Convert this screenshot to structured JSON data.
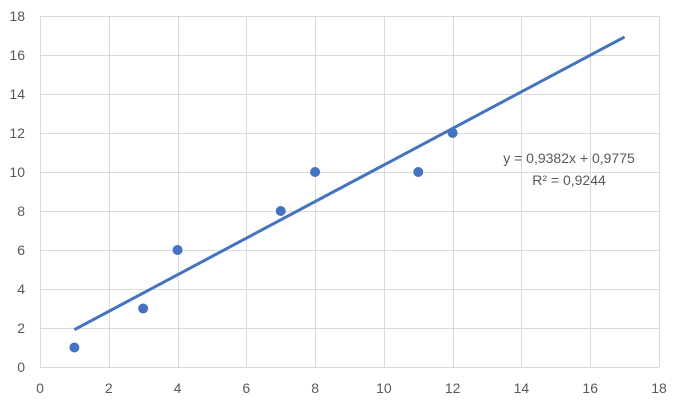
{
  "chart_data": {
    "type": "scatter",
    "title": "",
    "xlabel": "",
    "ylabel": "",
    "xlim": [
      0,
      18
    ],
    "ylim": [
      0,
      18
    ],
    "x_ticks": [
      0,
      2,
      4,
      6,
      8,
      10,
      12,
      14,
      16,
      18
    ],
    "y_ticks": [
      0,
      2,
      4,
      6,
      8,
      10,
      12,
      14,
      16,
      18
    ],
    "grid": true,
    "legend": "none",
    "series": [
      {
        "points": [
          {
            "x": 1,
            "y": 1
          },
          {
            "x": 3,
            "y": 3
          },
          {
            "x": 4,
            "y": 6
          },
          {
            "x": 7,
            "y": 8
          },
          {
            "x": 8,
            "y": 10
          },
          {
            "x": 11,
            "y": 10
          },
          {
            "x": 12,
            "y": 12
          }
        ],
        "color": "#4472c4"
      }
    ],
    "trendline": {
      "type": "linear",
      "slope": 0.9382,
      "intercept": 0.9775,
      "x_range": [
        1,
        17
      ],
      "color": "#4472c4",
      "equation_label": "y = 0,9382x + 0,9775",
      "r2_label": "R² = 0,9244"
    }
  }
}
